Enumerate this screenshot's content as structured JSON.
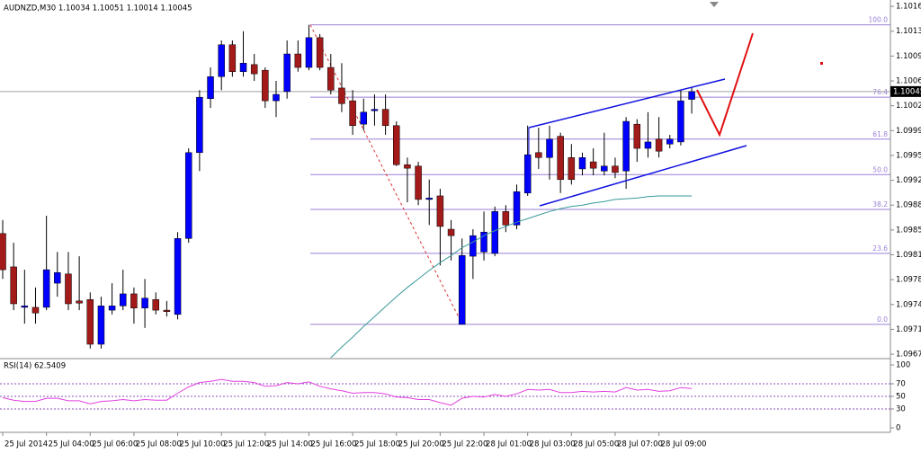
{
  "chart_data": [
    {
      "type": "candlestick",
      "title": "AUDNZD,M30  1.10034 1.10051 1.10014 1.10045",
      "categories": [
        "25 Jul 2014",
        null,
        null,
        null,
        "25 Jul 04:00",
        null,
        null,
        null,
        "25 Jul 06:00",
        null,
        null,
        null,
        "25 Jul 08:00",
        null,
        null,
        null,
        "25 Jul 10:00",
        null,
        null,
        null,
        "25 Jul 12:00",
        null,
        null,
        null,
        "25 Jul 14:00",
        null,
        null,
        null,
        "25 Jul 16:00",
        null,
        null,
        null,
        "25 Jul 18:00",
        null,
        null,
        null,
        "25 Jul 20:00",
        null,
        null,
        null,
        "25 Jul 22:00",
        null,
        null,
        null,
        "28 Jul 01:00",
        null,
        null,
        null,
        "28 Jul 03:00",
        null,
        null,
        null,
        "28 Jul 05:00",
        null,
        null,
        null,
        "28 Jul 07:00",
        null,
        null,
        null,
        "28 Jul 09:00",
        null,
        null,
        null
      ],
      "open": [
        1.09845,
        1.09798,
        1.09741,
        1.09741,
        1.09741,
        1.09775,
        1.09788,
        1.0975,
        1.09752,
        1.09689,
        1.09737,
        1.09743,
        1.0976,
        1.0974,
        1.09752,
        1.09737,
        1.09731,
        1.09838,
        1.09959,
        1.10035,
        1.10066,
        1.10111,
        1.10073,
        1.10083,
        1.10075,
        1.10032,
        1.10045,
        1.10098,
        1.10079,
        1.10121,
        1.10079,
        1.1005,
        1.10032,
        1.09999,
        1.10018,
        1.1002,
        1.09997,
        1.09942,
        1.0994,
        1.09893,
        1.09898,
        1.09851,
        1.09717,
        1.09813,
        1.09819,
        1.09817,
        1.09876,
        1.09857,
        1.09902,
        1.09959,
        1.09952,
        1.09982,
        1.09952,
        1.09936,
        1.09946,
        1.09933,
        1.0994,
        1.09933,
        1.09999,
        1.09965,
        1.09978,
        1.09971,
        1.09974,
        1.10034
      ],
      "high": [
        1.09864,
        1.09832,
        1.09794,
        1.09769,
        1.0987,
        1.09819,
        1.09819,
        1.09813,
        1.09762,
        1.09756,
        1.09775,
        1.09794,
        1.09769,
        1.09781,
        1.09762,
        1.0975,
        1.09847,
        1.09965,
        1.10047,
        1.10079,
        1.10117,
        1.10117,
        1.1013,
        1.10098,
        1.10079,
        1.1006,
        1.10117,
        1.10117,
        1.10139,
        1.10126,
        1.10098,
        1.10085,
        1.10047,
        1.10035,
        1.10041,
        1.10041,
        1.10003,
        1.09952,
        1.09946,
        1.09921,
        1.09908,
        1.09864,
        1.09838,
        1.09851,
        1.09876,
        1.09883,
        1.09885,
        1.09914,
        1.09997,
        1.09994,
        1.09997,
        1.09987,
        1.09971,
        1.09959,
        1.09965,
        1.09987,
        1.09952,
        1.10009,
        1.10006,
        1.10016,
        1.10009,
        1.09984,
        1.10047,
        1.10051
      ],
      "low": [
        1.09781,
        1.09737,
        1.09718,
        1.09718,
        1.09737,
        1.09756,
        1.09737,
        1.09737,
        1.09683,
        1.09683,
        1.09731,
        1.09737,
        1.09718,
        1.09712,
        1.09731,
        1.09728,
        1.09724,
        1.09832,
        1.09933,
        1.10022,
        1.10047,
        1.10066,
        1.10066,
        1.1006,
        1.10022,
        1.10009,
        1.10035,
        1.10073,
        1.10075,
        1.10075,
        1.10041,
        1.10016,
        1.09984,
        1.0999,
        1.09997,
        1.09984,
        1.0994,
        1.09889,
        1.09885,
        1.09857,
        1.098,
        1.09807,
        1.09717,
        1.09781,
        1.09807,
        1.09813,
        1.09847,
        1.09851,
        1.09898,
        1.09936,
        1.09921,
        1.09902,
        1.09914,
        1.09927,
        1.09927,
        1.09927,
        1.09923,
        1.09908,
        1.09946,
        1.09952,
        1.09952,
        1.09965,
        1.09969,
        1.10014
      ],
      "close": [
        1.09794,
        1.09746,
        1.09743,
        1.09733,
        1.09794,
        1.0979,
        1.09746,
        1.09747,
        1.09689,
        1.09743,
        1.09743,
        1.0976,
        1.0974,
        1.09754,
        1.09737,
        1.09735,
        1.09838,
        1.09959,
        1.10037,
        1.10066,
        1.10111,
        1.10073,
        1.10085,
        1.1007,
        1.10032,
        1.10041,
        1.10098,
        1.10079,
        1.10121,
        1.10079,
        1.10047,
        1.10028,
        1.09997,
        1.10016,
        1.1002,
        1.09997,
        1.09942,
        1.09937,
        1.09893,
        1.09895,
        1.09855,
        1.09842,
        1.09814,
        1.09842,
        1.09847,
        1.09876,
        1.09857,
        1.09904,
        1.09956,
        1.09952,
        1.09978,
        1.09921,
        1.09921,
        1.09952,
        1.09937,
        1.0994,
        1.09931,
        1.10003,
        1.09965,
        1.09974,
        1.09961,
        1.09978,
        1.10032,
        1.10045
      ],
      "up_color": "#0000ff",
      "down_color": "#a31a1a",
      "moving_average": {
        "color": "#3a9a9a",
        "values": [
          null,
          null,
          null,
          null,
          null,
          null,
          null,
          null,
          null,
          null,
          null,
          null,
          null,
          null,
          null,
          null,
          null,
          null,
          null,
          null,
          null,
          null,
          null,
          null,
          null,
          null,
          null,
          null,
          null,
          null,
          1.0967,
          1.09685,
          1.09699,
          1.09714,
          1.09728,
          1.09742,
          1.09756,
          1.09769,
          1.09781,
          1.09793,
          1.09804,
          1.09814,
          1.09825,
          1.09833,
          1.09842,
          1.09849,
          1.09855,
          1.09861,
          1.09866,
          1.09871,
          1.09876,
          1.0988,
          1.09883,
          1.09885,
          1.09888,
          1.0989,
          1.09893,
          1.09894,
          1.09895,
          1.09897,
          1.09898,
          1.09898,
          1.09898,
          1.09898
        ]
      },
      "fib_color": "#9a7fd8",
      "fib_levels": [
        {
          "value": 1.10139,
          "label": "100.0"
        },
        {
          "value": 1.10037,
          "label": "76.4"
        },
        {
          "value": 1.09978,
          "label": "61.8"
        },
        {
          "value": 1.09928,
          "label": "50.0"
        },
        {
          "value": 1.09879,
          "label": "38.2"
        },
        {
          "value": 1.09817,
          "label": "23.6"
        },
        {
          "value": 1.09717,
          "label": "0.0"
        }
      ],
      "last_price": {
        "value": 1.10045,
        "label": "1.10045"
      },
      "ylim": [
        1.0967,
        1.10174
      ],
      "yticks": [
        {
          "value": 1.10165,
          "label": "1.10165"
        },
        {
          "value": 1.1013,
          "label": "1.10130"
        },
        {
          "value": 1.10095,
          "label": "1.10095"
        },
        {
          "value": 1.1006,
          "label": "1.10060"
        },
        {
          "value": 1.10025,
          "label": "1.10025"
        },
        {
          "value": 1.0999,
          "label": "1.09990"
        },
        {
          "value": 1.09955,
          "label": "1.09955"
        },
        {
          "value": 1.0992,
          "label": "1.09920"
        },
        {
          "value": 1.09885,
          "label": "1.09885"
        },
        {
          "value": 1.0985,
          "label": "1.09850"
        },
        {
          "value": 1.09815,
          "label": "1.09815"
        },
        {
          "value": 1.0978,
          "label": "1.09780"
        },
        {
          "value": 1.09745,
          "label": "1.09745"
        },
        {
          "value": 1.0971,
          "label": "1.09710"
        },
        {
          "value": 1.09675,
          "label": "1.09675"
        }
      ]
    },
    {
      "type": "line",
      "title": "RSI(14) 62.5409",
      "color": "#e23fe0",
      "values": [
        48,
        44,
        42,
        42,
        47,
        47,
        43,
        43,
        38,
        42,
        43,
        45,
        43,
        45,
        44,
        44,
        55,
        65,
        72,
        74,
        77,
        74,
        74,
        72,
        66,
        67,
        72,
        70,
        73,
        66,
        62,
        59,
        55,
        56,
        56,
        54,
        49,
        48,
        45,
        45,
        40,
        36,
        47,
        50,
        49,
        53,
        50,
        54,
        61,
        60,
        61,
        56,
        56,
        58,
        57,
        58,
        57,
        64,
        60,
        61,
        58,
        59,
        64,
        62.5409
      ],
      "ylim": [
        0,
        100
      ],
      "yticks": [
        100,
        70,
        50,
        30,
        0
      ]
    }
  ]
}
